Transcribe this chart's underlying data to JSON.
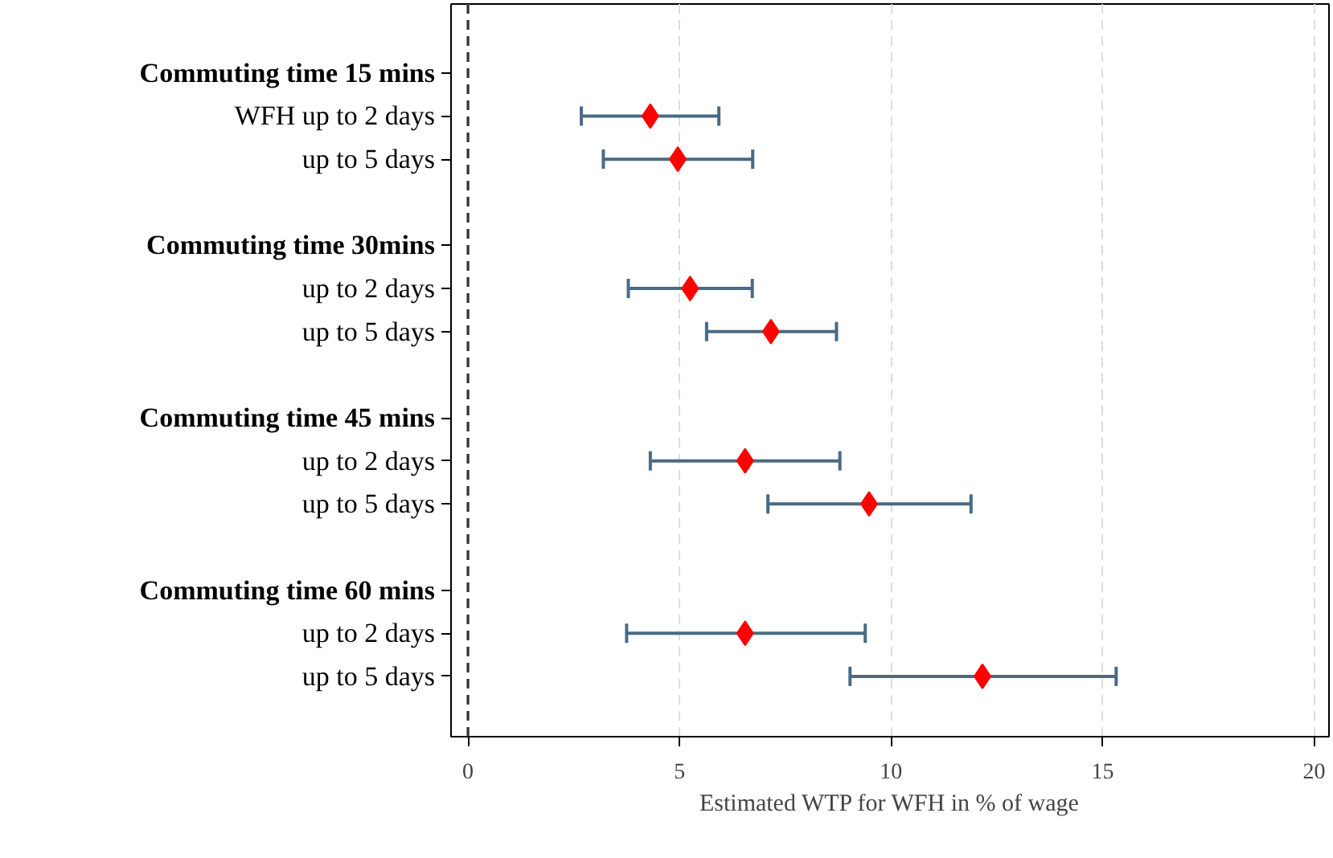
{
  "chart_data": {
    "type": "scatter",
    "orientation": "horizontal",
    "xlabel": "Estimated WTP for WFH in % of wage",
    "categories": [
      "Commuting time 15 mins",
      "WFH up to 2 days",
      "up to 5 days",
      null,
      "Commuting time 30mins",
      "up to 2 days",
      "up to 5 days",
      null,
      "Commuting time 45 mins",
      "up to 2 days",
      "up to 5 days",
      null,
      "Commuting time 60 mins",
      "up to 2 days",
      "up to 5 days"
    ],
    "series": [
      {
        "color": "#ff0000",
        "values": [
          null,
          4.31,
          4.96,
          null,
          null,
          5.25,
          7.16,
          null,
          null,
          6.55,
          9.48,
          null,
          null,
          6.55,
          12.16
        ],
        "errors": [
          null,
          [
            2.68,
            5.93
          ],
          [
            3.2,
            6.73
          ],
          null,
          null,
          [
            3.79,
            6.72
          ],
          [
            5.64,
            8.71
          ],
          null,
          null,
          [
            4.31,
            8.79
          ],
          [
            7.09,
            11.89
          ],
          null,
          null,
          [
            3.75,
            9.39
          ],
          [
            9.03,
            15.32
          ]
        ]
      }
    ],
    "xlim": [
      -0.4,
      20.35
    ],
    "xticks": [
      0,
      5,
      10,
      15,
      20
    ],
    "ref_lines": [
      {
        "axis": "x",
        "value": 0,
        "color": "#333333",
        "line_style": "dashed"
      }
    ],
    "grid": "x",
    "marker": "diamond"
  }
}
